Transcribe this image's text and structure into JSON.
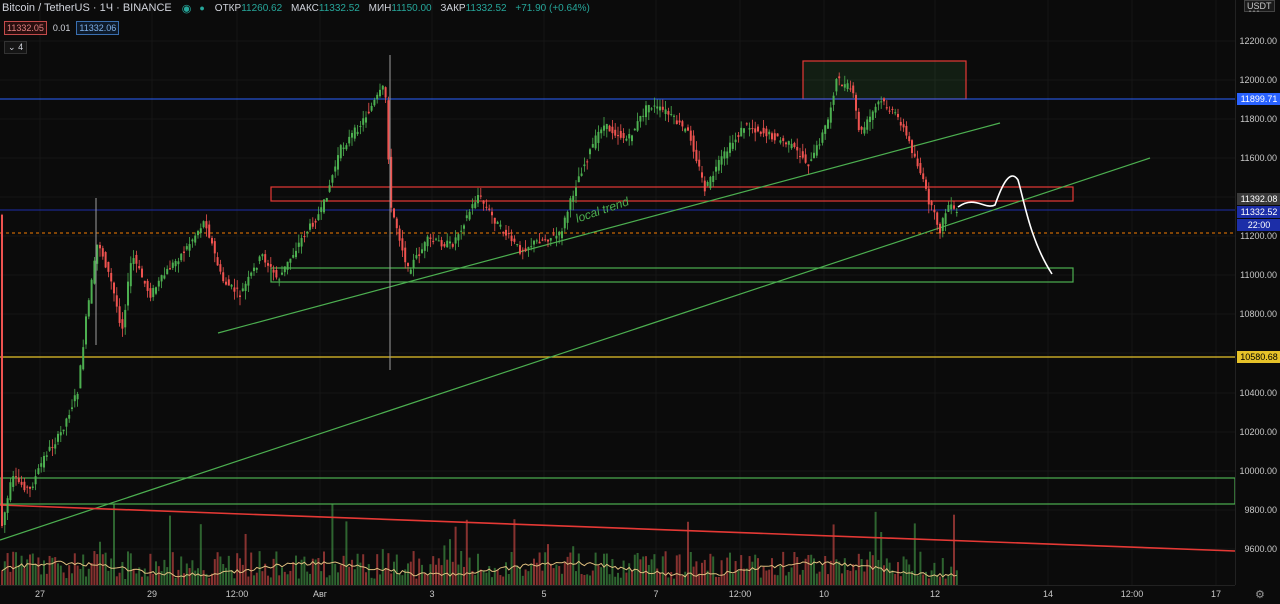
{
  "header": {
    "symbol": "Bitcoin / TetherUS · 1Ч · BINANCE",
    "ohlc": {
      "open_label": "ОТКР",
      "open": "11260.62",
      "high_label": "МАКС",
      "high": "11332.52",
      "low_label": "МИН",
      "low": "11150.00",
      "close_label": "ЗАКР",
      "close": "11332.52",
      "change": "+71.90 (+0.64%)"
    },
    "bid": "11332.05",
    "spread": "0.01",
    "ask": "11332.06",
    "collapse": "4"
  },
  "price_axis": {
    "currency": "USDT",
    "ticks": [
      "12200.00",
      "12000.00",
      "11800.00",
      "11600.00",
      "11200.00",
      "11000.00",
      "10800.00",
      "10400.00",
      "10200.00",
      "10000.00",
      "9800.00",
      "9600.00"
    ],
    "tags": {
      "resistance": "11899.71",
      "level_11392": "11392.08",
      "last_price": "11332.52",
      "countdown": "22:00",
      "support": "10580.68"
    }
  },
  "time_axis": [
    "27",
    "29",
    "12:00",
    "Авг",
    "3",
    "5",
    "7",
    "12:00",
    "10",
    "12",
    "14",
    "12:00",
    "17"
  ],
  "annotation": "local trend",
  "colors": {
    "up": "#4caf50",
    "down": "#ef5350",
    "resistance_line": "#2962ff",
    "support_line": "#e6c229",
    "zone_red": "#e53935",
    "zone_green": "#4caf50",
    "trend": "#4caf50",
    "ma_red": "#e53935",
    "volume_ma": "#e0c080"
  },
  "icons": {
    "eye": "eye-icon",
    "status": "status-dot-icon",
    "settings": "settings-icon",
    "gear": "gear-icon"
  }
}
